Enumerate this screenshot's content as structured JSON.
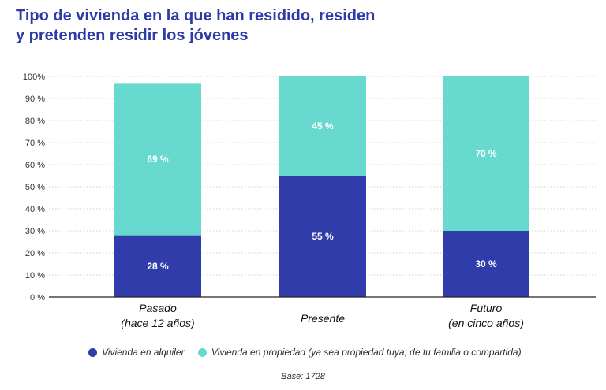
{
  "title_lines": [
    "Tipo de vivienda en la que han residido, residen",
    "y pretenden residir los jóvenes"
  ],
  "base_label": "Base: 1728",
  "colors": {
    "rent": "#2f3caa",
    "own": "#67d9cf",
    "axis": "#222222",
    "grid": "#d0d0d0",
    "title": "#2e3aa6"
  },
  "chart_data": {
    "type": "bar",
    "stacked": true,
    "title": "Tipo de vivienda en la que han residido, residen y pretenden residir los jóvenes",
    "categories": [
      [
        "Pasado",
        "(hace 12 años)"
      ],
      [
        "Presente"
      ],
      [
        "Futuro",
        "(en cinco años)"
      ]
    ],
    "series": [
      {
        "name": "Vivienda en alquiler",
        "color": "#2f3caa",
        "values": [
          28,
          55,
          30
        ],
        "labels": [
          "28 %",
          "55 %",
          "30 %"
        ]
      },
      {
        "name": "Vivienda en propiedad (ya sea propiedad tuya, de tu familia o compartida)",
        "color": "#67d9cf",
        "values": [
          69,
          45,
          70
        ],
        "labels": [
          "69 %",
          "45 %",
          "70 %"
        ]
      }
    ],
    "yticks": [
      "0 %",
      "10 %",
      "20 %",
      "30 %",
      "40 %",
      "50 %",
      "60 %",
      "70 %",
      "80 %",
      "90 %",
      "100%"
    ],
    "ylim": [
      0,
      100
    ],
    "grid": true,
    "xlabel": "",
    "ylabel": "",
    "legend_position": "bottom"
  }
}
